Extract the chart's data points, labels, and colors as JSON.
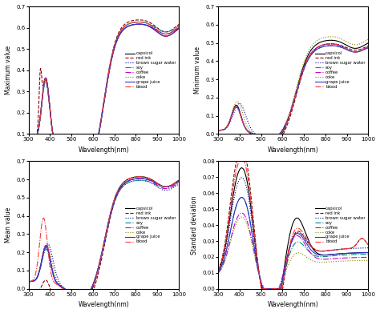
{
  "xlim": [
    300,
    1000
  ],
  "wavelength_ticks": [
    300,
    400,
    500,
    600,
    700,
    800,
    900,
    1000
  ],
  "subplots": [
    {
      "ylabel": "Maximum value",
      "ylim": [
        0.1,
        0.7
      ],
      "yticks": [
        0.1,
        0.2,
        0.3,
        0.4,
        0.5,
        0.6,
        0.7
      ]
    },
    {
      "ylabel": "Minimum value",
      "ylim": [
        0.0,
        0.7
      ],
      "yticks": [
        0.0,
        0.1,
        0.2,
        0.3,
        0.4,
        0.5,
        0.6,
        0.7
      ]
    },
    {
      "ylabel": "Mean value",
      "ylim": [
        0.0,
        0.7
      ],
      "yticks": [
        0.0,
        0.1,
        0.2,
        0.3,
        0.4,
        0.5,
        0.6,
        0.7
      ]
    },
    {
      "ylabel": "Standard deviation",
      "ylim": [
        0.0,
        0.08
      ],
      "yticks": [
        0.0,
        0.01,
        0.02,
        0.03,
        0.04,
        0.05,
        0.06,
        0.07,
        0.08
      ]
    }
  ],
  "series": [
    {
      "name": "capsicol",
      "color": "#000000",
      "linestyle": "-",
      "linewidth": 0.8
    },
    {
      "name": "red ink",
      "color": "#8B0000",
      "linestyle": "--",
      "linewidth": 0.8
    },
    {
      "name": "brown sugar water",
      "color": "#000099",
      "linestyle": ":",
      "linewidth": 0.8
    },
    {
      "name": "soy",
      "color": "#008888",
      "linestyle": "-.",
      "linewidth": 0.8
    },
    {
      "name": "coffee",
      "color": "#CC00CC",
      "linestyle": "-.",
      "linewidth": 0.8
    },
    {
      "name": "coke",
      "color": "#888800",
      "linestyle": ":",
      "linewidth": 0.8
    },
    {
      "name": "grape juice",
      "color": "#3333CC",
      "linestyle": "-",
      "linewidth": 0.8
    },
    {
      "name": "blood",
      "color": "#FF3333",
      "linestyle": "-.",
      "linewidth": 0.8
    }
  ],
  "xlabel": "Wavelength(nm)"
}
